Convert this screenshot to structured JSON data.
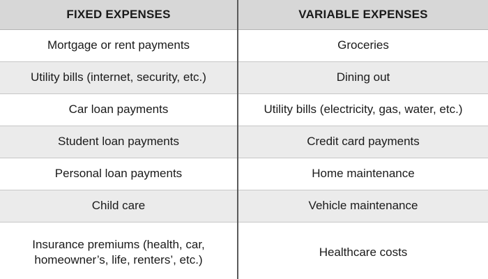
{
  "table": {
    "headers": {
      "fixed": "FIXED EXPENSES",
      "variable": "VARIABLE EXPENSES"
    },
    "rows": [
      {
        "fixed": "Mortgage or rent payments",
        "variable": "Groceries"
      },
      {
        "fixed": "Utility bills (internet, security, etc.)",
        "variable": "Dining out"
      },
      {
        "fixed": "Car loan payments",
        "variable": "Utility bills (electricity, gas, water, etc.)"
      },
      {
        "fixed": "Student loan payments",
        "variable": "Credit card payments"
      },
      {
        "fixed": "Personal loan payments",
        "variable": "Home maintenance"
      },
      {
        "fixed": "Child care",
        "variable": "Vehicle maintenance"
      },
      {
        "fixed": "Insurance premiums (health, car, homeowner’s, life, renters’, etc.)",
        "variable": "Healthcare costs"
      }
    ]
  },
  "colors": {
    "header_background": "#d7d7d7",
    "row_background_light": "#ffffff",
    "row_background_shaded": "#ebebeb",
    "column_divider": "#5a5a5a",
    "text": "#1a1a1a"
  }
}
